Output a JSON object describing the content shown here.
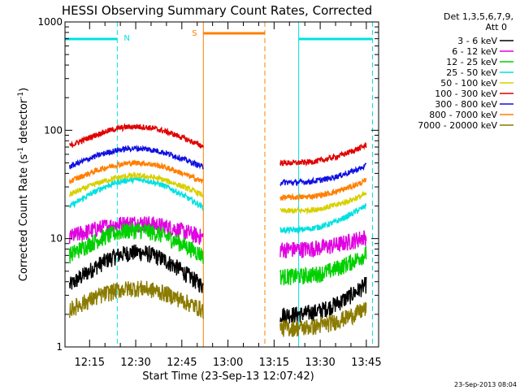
{
  "chart_data": {
    "type": "line",
    "title": "HESSI Observing Summary Count Rates, Corrected",
    "xlabel": "Start Time (23-Sep-13 12:07:42)",
    "ylabel_main": "Corrected Count Rate (s",
    "ylabel_sup1": "-1",
    "ylabel_mid": " detector",
    "ylabel_sup2": "-1",
    "ylabel_end": ")",
    "y_scale": "log",
    "ylim": [
      1,
      1000
    ],
    "y_ticks": [
      {
        "value": 1,
        "label": "1"
      },
      {
        "value": 10,
        "label": "10"
      },
      {
        "value": 100,
        "label": "100"
      },
      {
        "value": 1000,
        "label": "1000"
      }
    ],
    "x_range_minutes": [
      "12:07",
      "13:49"
    ],
    "x_ticks": [
      {
        "label": "12:15",
        "minute": 735
      },
      {
        "label": "12:30",
        "minute": 750
      },
      {
        "label": "12:45",
        "minute": 765
      },
      {
        "label": "13:00",
        "minute": 780
      },
      {
        "label": "13:15",
        "minute": 795
      },
      {
        "label": "13:30",
        "minute": 810
      },
      {
        "label": "13:45",
        "minute": 825
      }
    ],
    "legend_header": [
      "Det 1,3,5,6,7,9,",
      "Att 0"
    ],
    "legend_position": "outside-right",
    "data_gap_minutes": [
      "12:52",
      "13:17"
    ],
    "series": [
      {
        "name": "3 - 6 keV",
        "color": "#000000",
        "start": 2.0,
        "peak": 7.5
      },
      {
        "name": "6 - 12 keV",
        "color": "#e000e0",
        "start": 8.0,
        "peak": 14
      },
      {
        "name": "12 - 25 keV",
        "color": "#00d000",
        "start": 4.5,
        "peak": 12
      },
      {
        "name": "25 - 50 keV",
        "color": "#00e0e0",
        "start": 12,
        "peak": 35
      },
      {
        "name": "50 - 100 keV",
        "color": "#d8d000",
        "start": 18,
        "peak": 38
      },
      {
        "name": "100 - 300 keV",
        "color": "#e00000",
        "start": 50,
        "peak": 108
      },
      {
        "name": "300 - 800 keV",
        "color": "#1010e0",
        "start": 33,
        "peak": 68
      },
      {
        "name": "800 - 7000 keV",
        "color": "#ff7f00",
        "start": 24,
        "peak": 50
      },
      {
        "name": "7000 - 20000 keV",
        "color": "#8b7b00",
        "start": 1.5,
        "peak": 3.5
      }
    ],
    "flags": [
      {
        "label": "N",
        "color": "#00e0e0",
        "intervals": [
          [
            "12:07",
            "12:24"
          ],
          [
            "13:23",
            "13:47"
          ]
        ]
      },
      {
        "label": "S",
        "color": "#ff7f00",
        "intervals": [
          [
            "12:52",
            "13:12"
          ]
        ]
      }
    ],
    "grid": false
  },
  "timestamp": "23-Sep-2013 08:04"
}
